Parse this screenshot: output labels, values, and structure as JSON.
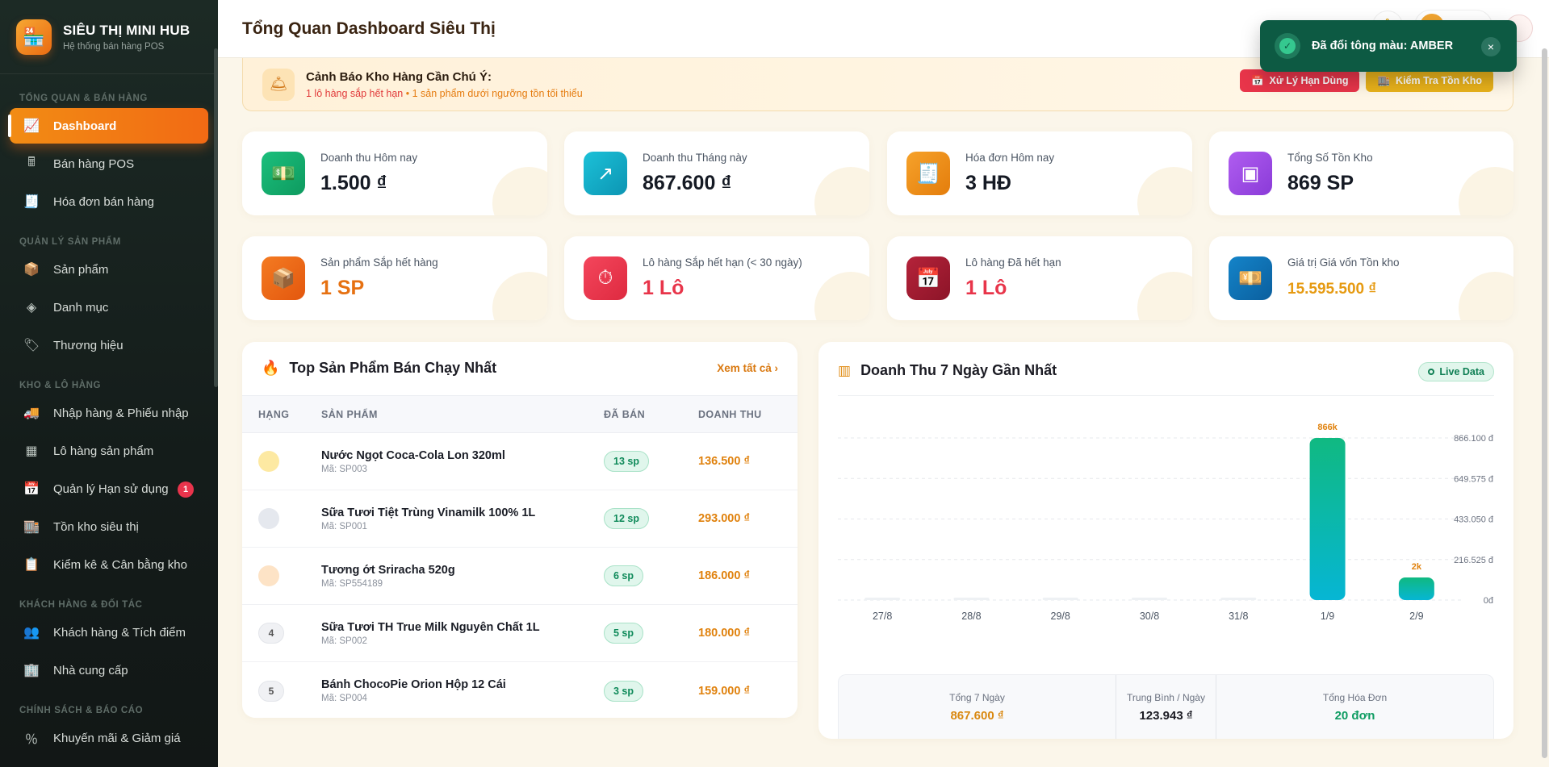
{
  "brand": {
    "name": "SIÊU THỊ MINI HUB",
    "subtitle": "Hệ thống bán hàng POS"
  },
  "sidebar": {
    "sections": [
      {
        "title": "TỔNG QUAN & BÁN HÀNG",
        "items": [
          {
            "label": "Dashboard",
            "icon": "chart-line-icon",
            "active": true
          },
          {
            "label": "Bán hàng POS",
            "icon": "cash-register-icon"
          },
          {
            "label": "Hóa đơn bán hàng",
            "icon": "invoice-icon"
          }
        ]
      },
      {
        "title": "QUẢN LÝ SẢN PHẨM",
        "items": [
          {
            "label": "Sản phẩm",
            "icon": "box-icon"
          },
          {
            "label": "Danh mục",
            "icon": "layers-icon"
          },
          {
            "label": "Thương hiệu",
            "icon": "tags-icon"
          }
        ]
      },
      {
        "title": "KHO & LÔ HÀNG",
        "items": [
          {
            "label": "Nhập hàng & Phiếu nhập",
            "icon": "truck-loading-icon"
          },
          {
            "label": "Lô hàng sản phẩm",
            "icon": "boxes-icon"
          },
          {
            "label": "Quản lý Hạn sử dụng",
            "icon": "calendar-x-icon",
            "badge": "1"
          },
          {
            "label": "Tồn kho siêu thị",
            "icon": "warehouse-icon"
          },
          {
            "label": "Kiểm kê & Cân bằng kho",
            "icon": "clipboard-check-icon"
          }
        ]
      },
      {
        "title": "KHÁCH HÀNG & ĐỐI TÁC",
        "items": [
          {
            "label": "Khách hàng & Tích điểm",
            "icon": "users-icon"
          },
          {
            "label": "Nhà cung cấp",
            "icon": "building-icon"
          }
        ]
      },
      {
        "title": "CHÍNH SÁCH & BÁO CÁO",
        "items": [
          {
            "label": "Khuyến mãi & Giảm giá",
            "icon": "percent-icon"
          }
        ]
      }
    ]
  },
  "header": {
    "title": "Tổng Quan Dashboard Siêu Thị",
    "user": "admin"
  },
  "toast": {
    "message": "Đã đổi tông màu: AMBER"
  },
  "alert": {
    "title": "Cảnh Báo Kho Hàng Cần Chú Ý:",
    "expiring": "1 lô hàng sắp hết hạn",
    "separator": "•",
    "low_stock": "1 sản phẩm dưới ngưỡng tồn tối thiểu",
    "btn_expiry": "Xử Lý Hạn Dùng",
    "btn_stock": "Kiểm Tra Tồn Kho"
  },
  "stats": [
    {
      "label": "Doanh thu Hôm nay",
      "value": "1.500 ₫",
      "color": "#16a86b"
    },
    {
      "label": "Doanh thu Tháng này",
      "value": "867.600 ₫",
      "color": "#10a8c4"
    },
    {
      "label": "Hóa đơn Hôm nay",
      "value": "3 HĐ",
      "color": "#ee8a12"
    },
    {
      "label": "Tổng Số Tồn Kho",
      "value": "869 SP",
      "color": "#9a4ae0"
    },
    {
      "label": "Sản phẩm Sắp hết hàng",
      "value": "1 SP",
      "color": "#ec6a16"
    },
    {
      "label": "Lô hàng Sắp hết hạn (< 30 ngày)",
      "value": "1 Lô",
      "color": "#e8354a"
    },
    {
      "label": "Lô hàng Đã hết hạn",
      "value": "1 Lô",
      "color": "#9b1a2e"
    },
    {
      "label": "Giá trị Giá vốn Tồn kho",
      "value": "15.595.500 ₫",
      "color": "#0f73b8"
    }
  ],
  "top_products": {
    "title": "Top Sản Phẩm Bán Chạy Nhất",
    "see_all": "Xem tất cả",
    "columns": [
      "HẠNG",
      "SẢN PHẨM",
      "ĐÃ BÁN",
      "DOANH THU"
    ],
    "rows": [
      {
        "rank": "",
        "name": "Nước Ngọt Coca-Cola Lon 320ml",
        "code": "Mã: SP003",
        "sold": "13 sp",
        "revenue": "136.500 ₫"
      },
      {
        "rank": "",
        "name": "Sữa Tươi Tiệt Trùng Vinamilk 100% 1L",
        "code": "Mã: SP001",
        "sold": "12 sp",
        "revenue": "293.000 ₫"
      },
      {
        "rank": "",
        "name": "Tương ớt Sriracha 520g",
        "code": "Mã: SP554189",
        "sold": "6 sp",
        "revenue": "186.000 ₫"
      },
      {
        "rank": "4",
        "name": "Sữa Tươi TH True Milk Nguyên Chất 1L",
        "code": "Mã: SP002",
        "sold": "5 sp",
        "revenue": "180.000 ₫"
      },
      {
        "rank": "5",
        "name": "Bánh ChocoPie Orion Hộp 12 Cái",
        "code": "Mã: SP004",
        "sold": "3 sp",
        "revenue": "159.000 ₫"
      }
    ]
  },
  "revenue_chart": {
    "title": "Doanh Thu 7 Ngày Gần Nhất",
    "live": "Live Data",
    "summary": {
      "total_label": "Tổng 7 Ngày",
      "total_value": "867.600 ₫",
      "avg_label": "Trung Bình / Ngày",
      "avg_value": "123.943 ₫",
      "orders_label": "Tổng Hóa Đơn",
      "orders_value": "20 đơn"
    }
  },
  "chart_data": {
    "type": "bar",
    "title": "Doanh Thu 7 Ngày Gần Nhất",
    "categories": [
      "27/8",
      "28/8",
      "29/8",
      "30/8",
      "31/8",
      "1/9",
      "2/9"
    ],
    "values": [
      0,
      0,
      0,
      0,
      0,
      866100,
      1500
    ],
    "data_labels": [
      "",
      "",
      "",
      "",
      "",
      "866k",
      "2k"
    ],
    "y_ticks": [
      "0đ",
      "216.525 đ",
      "433.050 đ",
      "649.575 đ",
      "866.100 đ"
    ],
    "ylim": [
      0,
      866100
    ],
    "grid": true,
    "colors": {
      "bar_top": "#10b981",
      "bar_bottom": "#06b6d4",
      "label": "#e0820e"
    }
  }
}
